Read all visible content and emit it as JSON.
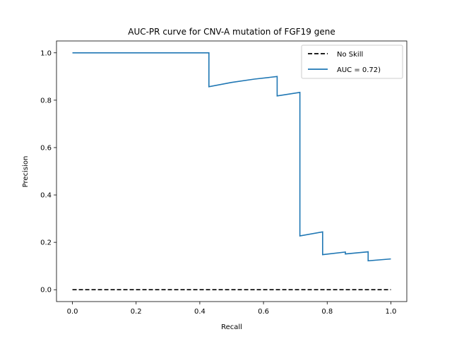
{
  "chart_data": {
    "type": "line",
    "title": "AUC-PR curve for CNV-A mutation of FGF19 gene",
    "xlabel": "Recall",
    "ylabel": "Precision",
    "xlim": [
      -0.05,
      1.05
    ],
    "ylim": [
      -0.05,
      1.05
    ],
    "xticks": [
      0.0,
      0.2,
      0.4,
      0.6,
      0.8,
      1.0
    ],
    "xtick_labels": [
      "0.0",
      "0.2",
      "0.4",
      "0.6",
      "0.8",
      "1.0"
    ],
    "yticks": [
      0.0,
      0.2,
      0.4,
      0.6,
      0.8,
      1.0
    ],
    "ytick_labels": [
      "0.0",
      "0.2",
      "0.4",
      "0.6",
      "0.8",
      "1.0"
    ],
    "grid": false,
    "legend_position": "top-right",
    "series": [
      {
        "name": "No Skill",
        "style": "dashed",
        "color": "#000000",
        "x": [
          0.0,
          1.0
        ],
        "y": [
          0.0,
          0.0
        ]
      },
      {
        "name": "AUC = 0.72)",
        "style": "solid",
        "color": "#1f77b4",
        "x": [
          0.0,
          0.0,
          0.4286,
          0.4286,
          0.5,
          0.5714,
          0.6429,
          0.6429,
          0.7143,
          0.7143,
          0.7857,
          0.7857,
          0.8571,
          0.8571,
          0.9286,
          0.9286,
          1.0
        ],
        "y": [
          1.0,
          1.0,
          1.0,
          0.857,
          0.875,
          0.889,
          0.9,
          0.818,
          0.833,
          0.227,
          0.244,
          0.148,
          0.159,
          0.151,
          0.16,
          0.122,
          0.13
        ]
      }
    ]
  }
}
